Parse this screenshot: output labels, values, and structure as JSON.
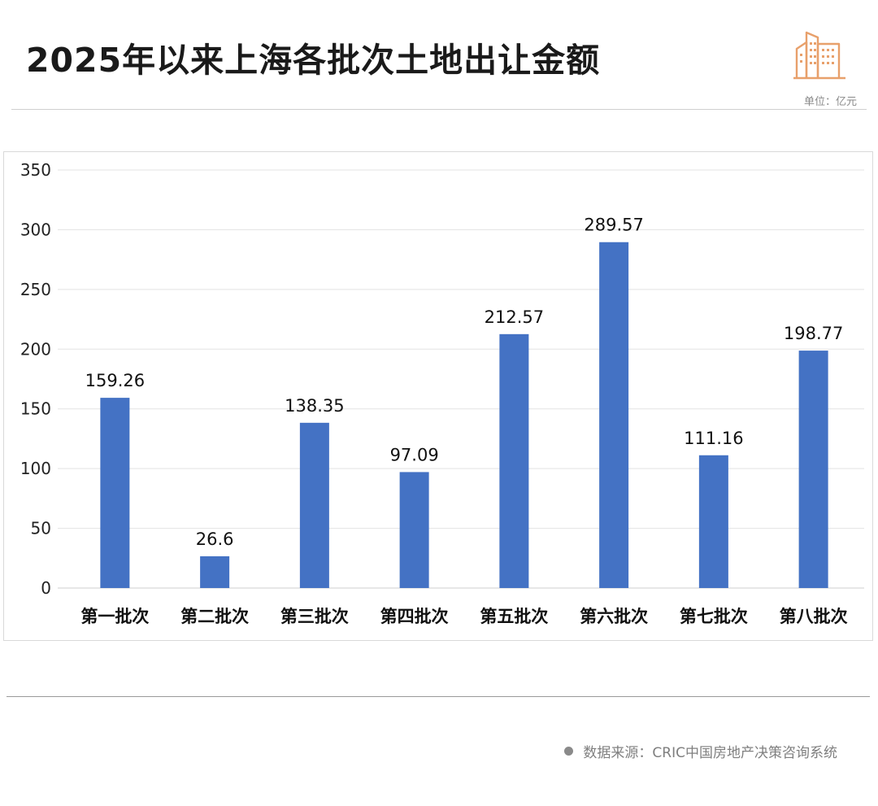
{
  "header": {
    "title": "2025年以来上海各批次土地出让金额",
    "unit": "单位：亿元"
  },
  "footer": {
    "source": "数据来源：CRIC中国房地产决策咨询系统"
  },
  "colors": {
    "bar": "#4472c4",
    "logo": "#e8a06b",
    "gridline": "#e3e3e3"
  },
  "icons": {
    "logo": "city-buildings-icon",
    "source_bullet": "dot-icon"
  },
  "chart_data": {
    "type": "bar",
    "title": "2025年以来上海各批次土地出让金额",
    "xlabel": "",
    "ylabel": "",
    "unit": "亿元",
    "categories": [
      "第一批次",
      "第二批次",
      "第三批次",
      "第四批次",
      "第五批次",
      "第六批次",
      "第七批次",
      "第八批次"
    ],
    "values": [
      159.26,
      26.6,
      138.35,
      97.09,
      212.57,
      289.57,
      111.16,
      198.77
    ],
    "data_labels": [
      "159.26",
      "26.6",
      "138.35",
      "97.09",
      "212.57",
      "289.57",
      "111.16",
      "198.77"
    ],
    "ylim": [
      0,
      350
    ],
    "yticks": [
      0,
      50,
      100,
      150,
      200,
      250,
      300,
      350
    ],
    "grid": true,
    "legend": "none"
  }
}
